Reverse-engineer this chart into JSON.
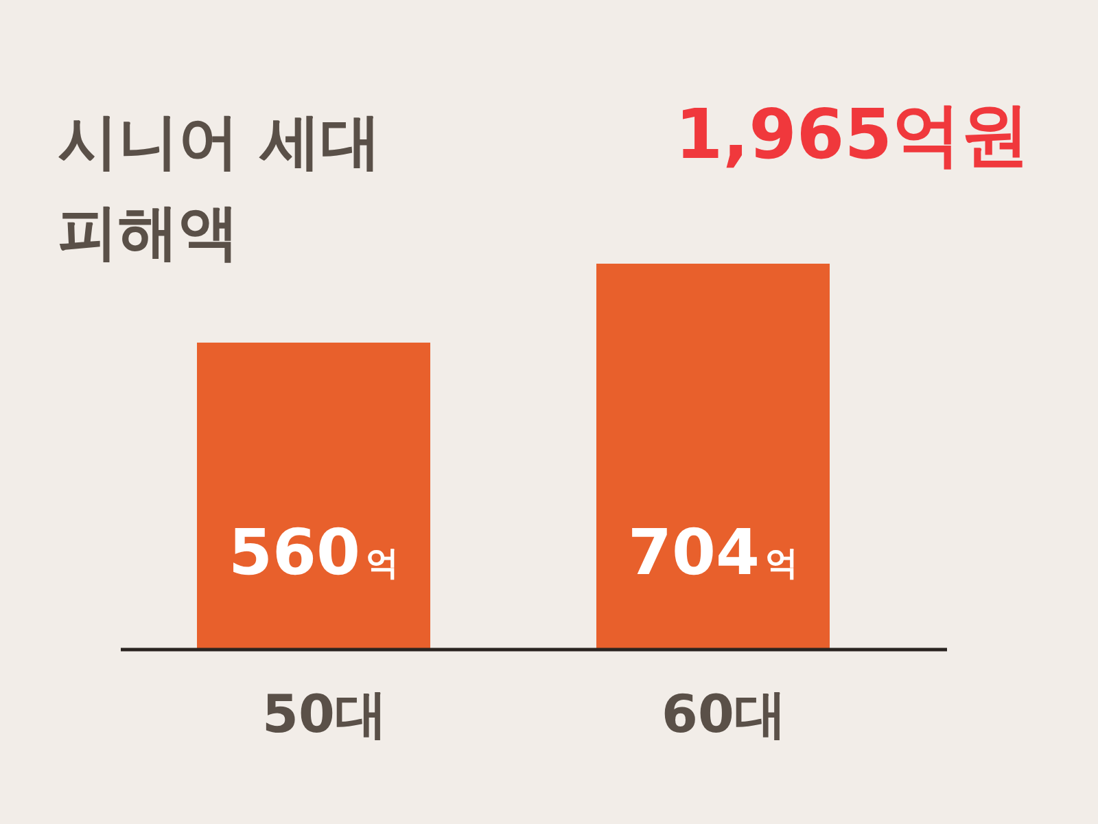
{
  "chart_data": {
    "type": "bar",
    "title": "시니어 세대\n피해액",
    "annotations": [
      "1,965억원"
    ],
    "categories": [
      "50대",
      "60대"
    ],
    "values": [
      560,
      704
    ],
    "color": "#e8602c",
    "value_labels": [
      "560억",
      "704억"
    ]
  }
}
